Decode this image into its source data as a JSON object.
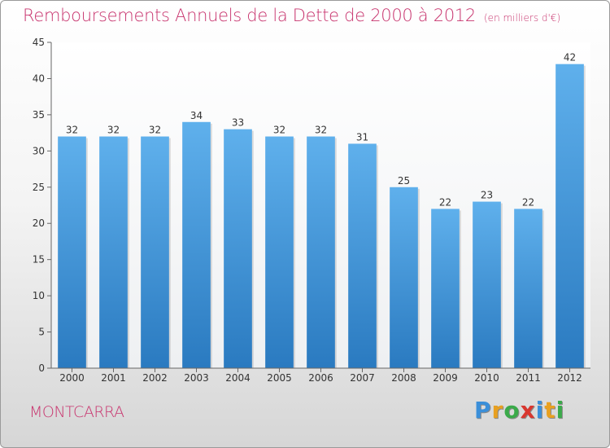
{
  "title": "Remboursements Annuels de la Dette de 2000 à 2012",
  "unit": "(en milliers d'€)",
  "commune": "MONTCARRA",
  "logo": {
    "text": "Proxiti",
    "letters": [
      {
        "ch": "P",
        "color": "#3b8fd9"
      },
      {
        "ch": "r",
        "color": "#e8a020"
      },
      {
        "ch": "o",
        "color": "#3baa4a"
      },
      {
        "ch": "x",
        "color": "#d9372f"
      },
      {
        "ch": "i",
        "color": "#3b8fd9"
      },
      {
        "ch": "t",
        "color": "#e8a020"
      },
      {
        "ch": "i",
        "color": "#3baa4a"
      }
    ]
  },
  "colors": {
    "bar_top": "#5fb0ec",
    "bar_bottom": "#2a7ac0",
    "accent": "#c8346e"
  },
  "chart_data": {
    "type": "bar",
    "title": "Remboursements Annuels de la Dette de 2000 à 2012",
    "unit": "(en milliers d'€)",
    "categories": [
      "2000",
      "2001",
      "2002",
      "2003",
      "2004",
      "2005",
      "2006",
      "2007",
      "2008",
      "2009",
      "2010",
      "2011",
      "2012"
    ],
    "values": [
      32,
      32,
      32,
      34,
      33,
      32,
      32,
      31,
      25,
      22,
      23,
      22,
      42
    ],
    "yticks": [
      0,
      5,
      10,
      15,
      20,
      25,
      30,
      35,
      40,
      45
    ],
    "ylim": [
      0,
      45
    ],
    "grid": false,
    "legend": "none"
  }
}
